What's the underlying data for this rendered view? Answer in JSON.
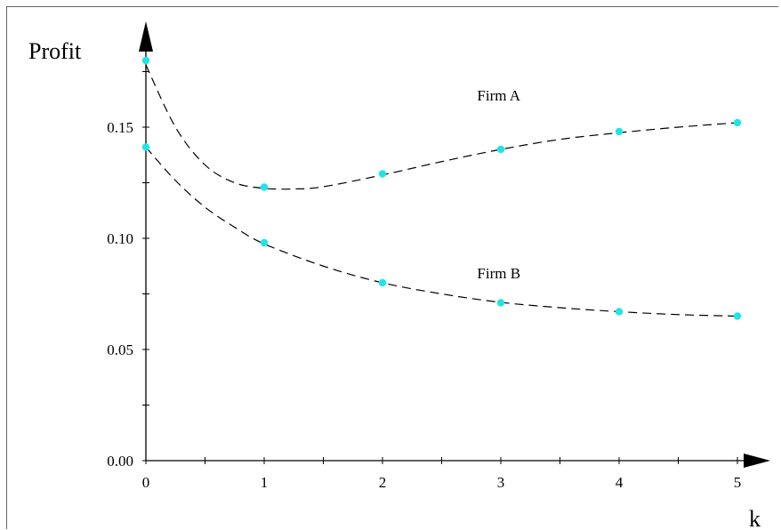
{
  "chart_data": {
    "type": "line",
    "xlabel": "k",
    "ylabel": "Profit",
    "xlim": [
      0,
      5
    ],
    "ylim": [
      0,
      0.18
    ],
    "xticks": [
      "0",
      "1",
      "2",
      "3",
      "4",
      "5"
    ],
    "yticks": [
      "0.00",
      "0.05",
      "0.10",
      "0.15"
    ],
    "grid": false,
    "series": [
      {
        "name": "Firm A",
        "x": [
          0,
          1,
          2,
          3,
          4,
          5
        ],
        "y": [
          0.18,
          0.123,
          0.129,
          0.14,
          0.148,
          0.152
        ],
        "curve_x": [
          0,
          0.25,
          0.5,
          0.75,
          1,
          1.25,
          1.5,
          2,
          2.5,
          3,
          3.5,
          4,
          4.5,
          5
        ],
        "curve_y": [
          0.178,
          0.15,
          0.133,
          0.125,
          0.1225,
          0.1222,
          0.1232,
          0.1285,
          0.1345,
          0.14,
          0.1445,
          0.1475,
          0.15,
          0.152
        ]
      },
      {
        "name": "Firm B",
        "x": [
          0,
          1,
          2,
          3,
          4,
          5
        ],
        "y": [
          0.141,
          0.098,
          0.08,
          0.071,
          0.067,
          0.065
        ],
        "curve_x": [
          0,
          0.25,
          0.5,
          0.75,
          1,
          1.5,
          2,
          2.5,
          3,
          3.5,
          4,
          4.5,
          5
        ],
        "curve_y": [
          0.141,
          0.126,
          0.114,
          0.105,
          0.0975,
          0.0875,
          0.08,
          0.075,
          0.0712,
          0.0688,
          0.067,
          0.0657,
          0.065
        ]
      }
    ],
    "annotations": [
      {
        "text": "Firm A",
        "x": 2.8,
        "y": 0.162
      },
      {
        "text": "Firm B",
        "x": 2.8,
        "y": 0.082
      }
    ],
    "colors": {
      "marker": "#22e4e8",
      "line": "#000000",
      "axis": "#000000"
    }
  }
}
